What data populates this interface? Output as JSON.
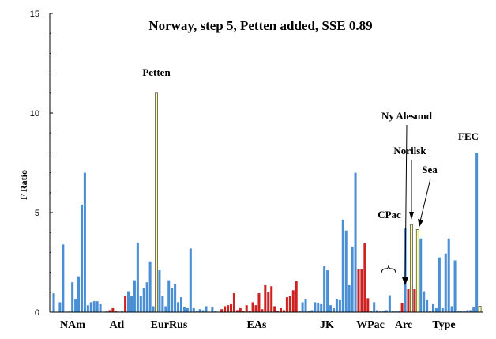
{
  "chart_data": {
    "type": "bar",
    "title": "Norway, step 5, Petten added, SSE 0.89",
    "ylabel": "F Ratio",
    "xlabel": "",
    "ylim": [
      0,
      15
    ],
    "yticks": [
      "0",
      "5",
      "10",
      "15"
    ],
    "grid": false,
    "legend": "none",
    "colors": {
      "blue": "#4a8fd4",
      "red": "#cc2222",
      "yellow": "#ffff99",
      "edge": "#555555",
      "axis": "#000000"
    },
    "groups": [
      "NAm",
      "Atl",
      "EurRus",
      "EAs",
      "JK",
      "WPac",
      "Arc",
      "Type"
    ],
    "annotations": [
      "Petten",
      "Ny Alesund",
      "Norilsk",
      "Sea",
      "FEC",
      "CPac"
    ],
    "values": [
      0.95,
      0.02,
      0.5,
      3.4,
      0.02,
      0.03,
      1.5,
      0.65,
      1.8,
      5.4,
      7.0,
      0.35,
      0.5,
      0.55,
      0.55,
      0.4,
      0.02,
      0.05,
      0.1,
      0.2,
      0.05,
      0.02,
      0.05,
      0.8,
      1.05,
      0.8,
      1.6,
      3.5,
      0.8,
      1.2,
      1.5,
      2.55,
      0.3,
      11.0,
      2.1,
      0.8,
      0.3,
      1.6,
      1.2,
      1.4,
      0.5,
      0.75,
      0.25,
      0.2,
      3.2,
      0.2,
      0.05,
      0.15,
      0.1,
      0.3,
      0.02,
      0.25,
      0.05,
      0.02,
      0.15,
      0.3,
      0.35,
      0.4,
      0.95,
      0.1,
      0.2,
      0.05,
      0.35,
      0.05,
      0.5,
      0.35,
      0.95,
      0.15,
      1.35,
      1.0,
      1.3,
      0.3,
      0.05,
      0.2,
      0.1,
      0.75,
      0.8,
      1.1,
      1.55,
      0.05,
      0.5,
      0.65,
      0.05,
      0.1,
      0.5,
      0.45,
      0.4,
      2.3,
      2.1,
      0.35,
      0.2,
      0.65,
      0.6,
      4.65,
      4.1,
      1.35,
      3.3,
      7.0,
      2.15,
      2.15,
      3.45,
      0.7,
      0.05,
      0.5,
      0.1,
      0.05,
      0.05,
      0.1,
      0.85,
      0.05,
      0.05,
      0.05,
      0.45,
      4.2,
      1.15,
      4.4,
      1.15,
      4.15,
      3.7,
      1.05,
      0.6,
      0.05,
      0.4,
      0.2,
      2.75,
      0.2,
      2.95,
      3.7,
      0.3,
      2.6,
      0.05,
      0.05,
      0.05,
      0.1,
      0.1,
      0.25,
      8.0,
      0.3
    ],
    "bar_colors": [
      "blue",
      "blue",
      "blue",
      "blue",
      "blue",
      "blue",
      "blue",
      "blue",
      "blue",
      "blue",
      "blue",
      "blue",
      "blue",
      "blue",
      "blue",
      "blue",
      "blue",
      "blue",
      "red",
      "red",
      "red",
      "blue",
      "blue",
      "red",
      "blue",
      "blue",
      "blue",
      "blue",
      "blue",
      "blue",
      "blue",
      "blue",
      "blue",
      "yellow",
      "blue",
      "blue",
      "blue",
      "blue",
      "blue",
      "blue",
      "blue",
      "blue",
      "blue",
      "blue",
      "blue",
      "blue",
      "blue",
      "blue",
      "blue",
      "blue",
      "blue",
      "blue",
      "blue",
      "red",
      "red",
      "red",
      "red",
      "red",
      "red",
      "red",
      "red",
      "red",
      "red",
      "red",
      "red",
      "red",
      "red",
      "red",
      "red",
      "red",
      "red",
      "red",
      "red",
      "red",
      "red",
      "red",
      "red",
      "red",
      "red",
      "blue",
      "blue",
      "blue",
      "blue",
      "blue",
      "blue",
      "blue",
      "blue",
      "blue",
      "blue",
      "blue",
      "blue",
      "blue",
      "blue",
      "blue",
      "blue",
      "blue",
      "blue",
      "blue",
      "red",
      "red",
      "red",
      "red",
      "blue",
      "blue",
      "blue",
      "blue",
      "blue",
      "blue",
      "blue",
      "blue",
      "blue",
      "blue",
      "red",
      "blue",
      "red",
      "yellow",
      "red",
      "yellow",
      "blue",
      "blue",
      "blue",
      "blue",
      "blue",
      "blue",
      "blue",
      "blue",
      "blue",
      "blue",
      "blue",
      "blue",
      "blue",
      "blue",
      "blue",
      "blue",
      "blue",
      "blue",
      "blue",
      "yellow",
      "blue"
    ]
  }
}
